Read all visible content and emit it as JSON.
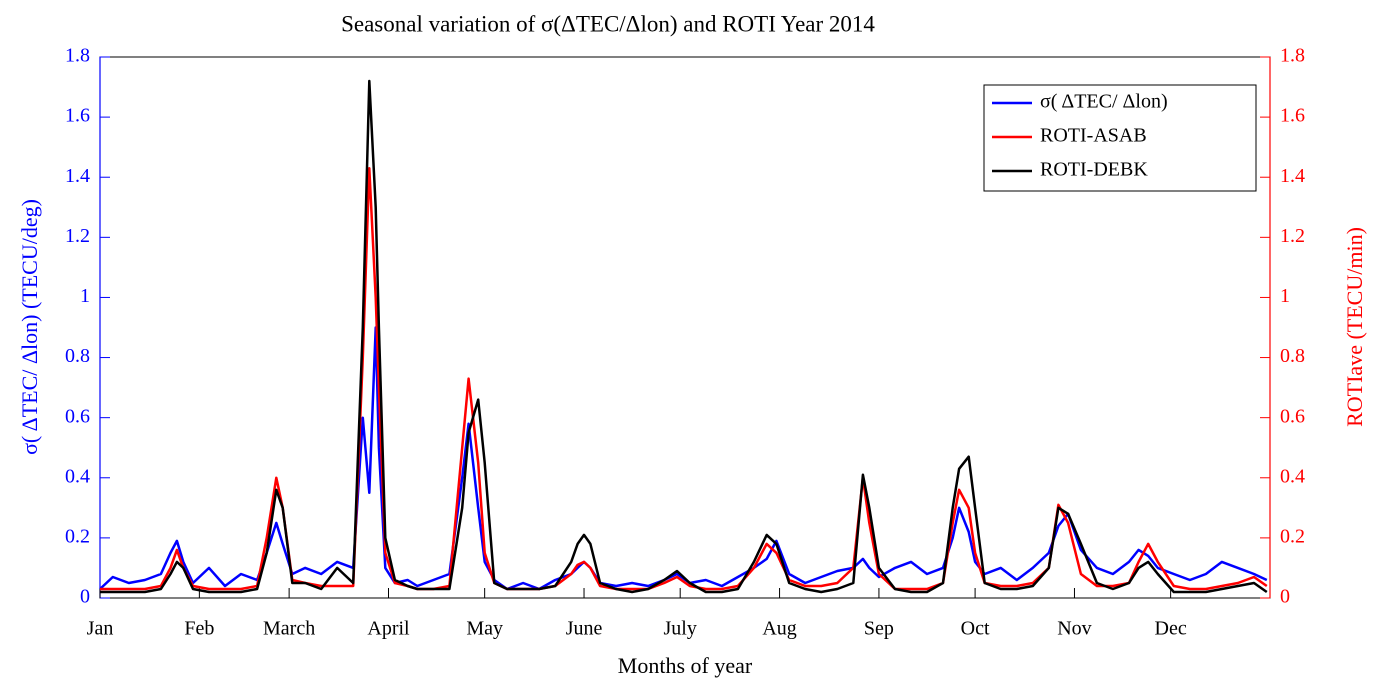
{
  "chart_data": {
    "type": "line",
    "title": "Seasonal variation of  σ(ΔTEC/Δlon) and ROTI       Year 2014",
    "x_label": "Months of year",
    "y_label": "σ( ΔTEC/ Δlon) (TECU/deg)",
    "y2_label": "ROTIave (TECU/min)",
    "x": [
      1,
      5,
      10,
      15,
      20,
      23,
      25,
      27,
      30,
      35,
      40,
      45,
      50,
      53,
      56,
      58,
      61,
      65,
      70,
      75,
      80,
      83,
      85,
      87,
      88,
      90,
      93,
      97,
      100,
      105,
      110,
      114,
      116,
      119,
      121,
      124,
      128,
      133,
      138,
      143,
      148,
      150,
      152,
      154,
      157,
      162,
      167,
      172,
      177,
      181,
      185,
      190,
      195,
      200,
      205,
      209,
      212,
      216,
      221,
      226,
      231,
      236,
      239,
      241,
      244,
      249,
      254,
      259,
      264,
      267,
      269,
      272,
      274,
      277,
      282,
      287,
      292,
      297,
      300,
      303,
      307,
      312,
      317,
      322,
      325,
      328,
      331,
      336,
      341,
      346,
      351,
      356,
      361,
      365
    ],
    "series": [
      {
        "name": "σ( ΔTEC/ Δlon)",
        "color": "#0000ff",
        "axis": "y",
        "values": [
          0.03,
          0.07,
          0.05,
          0.06,
          0.08,
          0.15,
          0.19,
          0.12,
          0.05,
          0.1,
          0.04,
          0.08,
          0.06,
          0.15,
          0.25,
          0.18,
          0.08,
          0.1,
          0.08,
          0.12,
          0.1,
          0.6,
          0.35,
          0.9,
          0.5,
          0.1,
          0.05,
          0.06,
          0.04,
          0.06,
          0.08,
          0.4,
          0.58,
          0.3,
          0.12,
          0.06,
          0.03,
          0.05,
          0.03,
          0.06,
          0.08,
          0.1,
          0.12,
          0.1,
          0.05,
          0.04,
          0.05,
          0.04,
          0.06,
          0.08,
          0.05,
          0.06,
          0.04,
          0.07,
          0.1,
          0.13,
          0.19,
          0.08,
          0.05,
          0.07,
          0.09,
          0.1,
          0.13,
          0.1,
          0.07,
          0.1,
          0.12,
          0.08,
          0.1,
          0.2,
          0.3,
          0.22,
          0.12,
          0.08,
          0.1,
          0.06,
          0.1,
          0.15,
          0.24,
          0.28,
          0.16,
          0.1,
          0.08,
          0.12,
          0.16,
          0.14,
          0.1,
          0.08,
          0.06,
          0.08,
          0.12,
          0.1,
          0.08,
          0.06
        ]
      },
      {
        "name": "ROTI-ASAB",
        "color": "#ff0000",
        "axis": "y2",
        "values": [
          0.03,
          0.03,
          0.03,
          0.03,
          0.04,
          0.1,
          0.16,
          0.1,
          0.04,
          0.03,
          0.03,
          0.03,
          0.04,
          0.2,
          0.4,
          0.3,
          0.06,
          0.05,
          0.04,
          0.04,
          0.04,
          0.8,
          1.43,
          1.0,
          0.7,
          0.15,
          0.05,
          0.04,
          0.03,
          0.03,
          0.04,
          0.5,
          0.73,
          0.45,
          0.15,
          0.05,
          0.03,
          0.03,
          0.03,
          0.04,
          0.08,
          0.11,
          0.12,
          0.1,
          0.04,
          0.03,
          0.03,
          0.03,
          0.05,
          0.07,
          0.04,
          0.03,
          0.03,
          0.04,
          0.1,
          0.18,
          0.15,
          0.06,
          0.04,
          0.04,
          0.05,
          0.1,
          0.4,
          0.25,
          0.08,
          0.03,
          0.03,
          0.03,
          0.05,
          0.25,
          0.36,
          0.3,
          0.15,
          0.05,
          0.04,
          0.04,
          0.05,
          0.1,
          0.31,
          0.25,
          0.08,
          0.04,
          0.04,
          0.05,
          0.12,
          0.18,
          0.12,
          0.04,
          0.03,
          0.03,
          0.04,
          0.05,
          0.07,
          0.04
        ]
      },
      {
        "name": "ROTI-DEBK",
        "color": "#000000",
        "axis": "y2",
        "values": [
          0.02,
          0.02,
          0.02,
          0.02,
          0.03,
          0.08,
          0.12,
          0.1,
          0.03,
          0.02,
          0.02,
          0.02,
          0.03,
          0.15,
          0.36,
          0.3,
          0.05,
          0.05,
          0.03,
          0.1,
          0.05,
          0.9,
          1.72,
          1.3,
          0.9,
          0.2,
          0.06,
          0.04,
          0.03,
          0.03,
          0.03,
          0.3,
          0.55,
          0.66,
          0.45,
          0.05,
          0.03,
          0.03,
          0.03,
          0.04,
          0.12,
          0.18,
          0.21,
          0.18,
          0.05,
          0.03,
          0.02,
          0.03,
          0.06,
          0.09,
          0.05,
          0.02,
          0.02,
          0.03,
          0.12,
          0.21,
          0.18,
          0.05,
          0.03,
          0.02,
          0.03,
          0.05,
          0.41,
          0.3,
          0.1,
          0.03,
          0.02,
          0.02,
          0.05,
          0.3,
          0.43,
          0.47,
          0.3,
          0.05,
          0.03,
          0.03,
          0.04,
          0.1,
          0.3,
          0.28,
          0.18,
          0.05,
          0.03,
          0.05,
          0.1,
          0.12,
          0.08,
          0.02,
          0.02,
          0.02,
          0.03,
          0.04,
          0.05,
          0.02
        ]
      }
    ],
    "xlim": [
      1,
      366
    ],
    "xticks": [
      {
        "value": 1,
        "label": "Jan"
      },
      {
        "value": 32,
        "label": "Feb"
      },
      {
        "value": 60,
        "label": "March"
      },
      {
        "value": 91,
        "label": "April"
      },
      {
        "value": 121,
        "label": "May"
      },
      {
        "value": 152,
        "label": "June"
      },
      {
        "value": 182,
        "label": "July"
      },
      {
        "value": 213,
        "label": "Aug"
      },
      {
        "value": 244,
        "label": "Sep"
      },
      {
        "value": 274,
        "label": "Oct"
      },
      {
        "value": 305,
        "label": "Nov"
      },
      {
        "value": 335,
        "label": "Dec"
      }
    ],
    "ylim": [
      0,
      1.8
    ],
    "yticks": [
      0,
      0.2,
      0.4,
      0.6,
      0.8,
      1,
      1.2,
      1.4,
      1.6,
      1.8
    ],
    "y2lim": [
      0,
      1.8
    ],
    "y2ticks": [
      0,
      0.2,
      0.4,
      0.6,
      0.8,
      1,
      1.2,
      1.4,
      1.6,
      1.8
    ],
    "y_color": "#0000ff",
    "y2_color": "#ff0000",
    "legend": "top-right"
  }
}
